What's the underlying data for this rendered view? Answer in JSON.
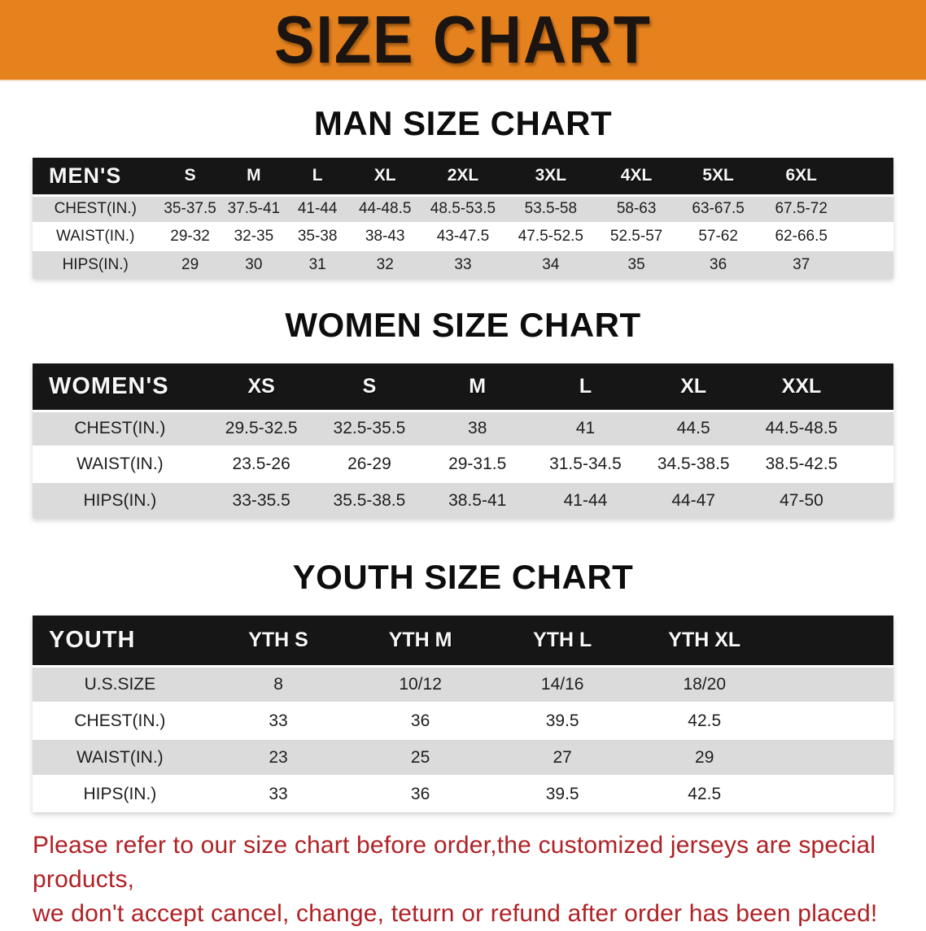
{
  "banner": {
    "title": "SIZE CHART"
  },
  "colors": {
    "banner_bg": "#E6821E",
    "banner_text": "#1B1410",
    "header_bg": "#161616",
    "header_text": "#F7F7F7",
    "stripe_row": "#DBDBDB",
    "white_row": "#FFFFFF",
    "disclaimer_text": "#B02125"
  },
  "sections": [
    {
      "heading": "MAN SIZE CHART",
      "table": {
        "label": "MEN'S",
        "columns": [
          "S",
          "M",
          "L",
          "XL",
          "2XL",
          "3XL",
          "4XL",
          "5XL",
          "6XL"
        ],
        "rows": [
          {
            "label": "CHEST(IN.)",
            "values": [
              "35-37.5",
              "37.5-41",
              "41-44",
              "44-48.5",
              "48.5-53.5",
              "53.5-58",
              "58-63",
              "63-67.5",
              "67.5-72"
            ]
          },
          {
            "label": "WAIST(IN.)",
            "values": [
              "29-32",
              "32-35",
              "35-38",
              "38-43",
              "43-47.5",
              "47.5-52.5",
              "52.5-57",
              "57-62",
              "62-66.5"
            ]
          },
          {
            "label": "HIPS(IN.)",
            "values": [
              "29",
              "30",
              "31",
              "32",
              "33",
              "34",
              "35",
              "36",
              "37"
            ]
          }
        ]
      }
    },
    {
      "heading": "WOMEN SIZE CHART",
      "table": {
        "label": "WOMEN'S",
        "columns": [
          "XS",
          "S",
          "M",
          "L",
          "XL",
          "XXL"
        ],
        "rows": [
          {
            "label": "CHEST(IN.)",
            "values": [
              "29.5-32.5",
              "32.5-35.5",
              "38",
              "41",
              "44.5",
              "44.5-48.5"
            ]
          },
          {
            "label": "WAIST(IN.)",
            "values": [
              "23.5-26",
              "26-29",
              "29-31.5",
              "31.5-34.5",
              "34.5-38.5",
              "38.5-42.5"
            ]
          },
          {
            "label": "HIPS(IN.)",
            "values": [
              "33-35.5",
              "35.5-38.5",
              "38.5-41",
              "41-44",
              "44-47",
              "47-50"
            ]
          }
        ]
      }
    },
    {
      "heading": "YOUTH SIZE CHART",
      "table": {
        "label": "YOUTH",
        "columns": [
          "YTH S",
          "YTH M",
          "YTH L",
          "YTH XL"
        ],
        "rows": [
          {
            "label": "U.S.SIZE",
            "values": [
              "8",
              "10/12",
              "14/16",
              "18/20"
            ]
          },
          {
            "label": "CHEST(IN.)",
            "values": [
              "33",
              "36",
              "39.5",
              "42.5"
            ]
          },
          {
            "label": "WAIST(IN.)",
            "values": [
              "23",
              "25",
              "27",
              "29"
            ]
          },
          {
            "label": "HIPS(IN.)",
            "values": [
              "33",
              "36",
              "39.5",
              "42.5"
            ]
          }
        ]
      }
    }
  ],
  "disclaimer": {
    "line1": "Please refer to our size chart before order,the customized jerseys are special products,",
    "line2": "we don't accept cancel, change, teturn or refund after order has been placed!"
  }
}
